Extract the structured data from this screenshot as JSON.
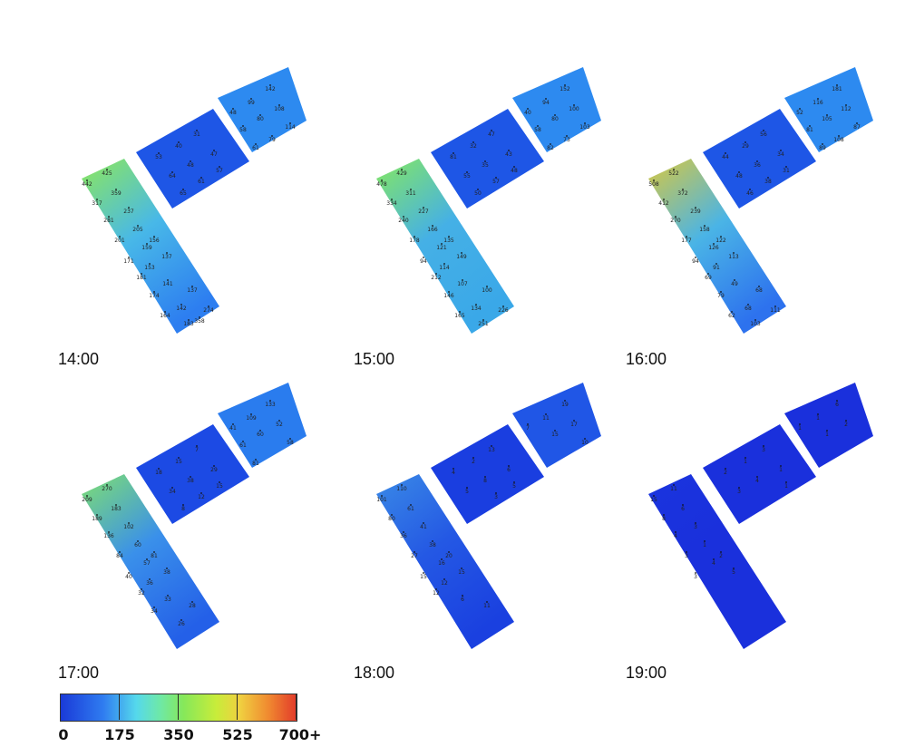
{
  "panels": [
    {
      "time": "14:00",
      "colors": {
        "north": "#1e56e6",
        "east": "#2d8af0",
        "stripTop": "#8ee85a",
        "stripMid": "#48b8e8",
        "stripBot": "#2d7ef0"
      },
      "labels": {
        "north": [
          "53",
          "40",
          "31",
          "47",
          "64",
          "48",
          "57",
          "61",
          "65"
        ],
        "east": [
          "142",
          "99",
          "108",
          "48",
          "80",
          "114",
          "58",
          "61",
          "79"
        ],
        "strip": [
          "442",
          "425",
          "317",
          "359",
          "281",
          "237",
          "201",
          "205",
          "156",
          "159",
          "137",
          "171",
          "153",
          "181",
          "141",
          "137",
          "174",
          "142",
          "164",
          "274",
          "183",
          "358"
        ]
      }
    },
    {
      "time": "15:00",
      "colors": {
        "north": "#1e56e6",
        "east": "#2d8af0",
        "stripTop": "#86e860",
        "stripMid": "#45b0e6",
        "stripBot": "#3aa8e8"
      },
      "labels": {
        "north": [
          "81",
          "32",
          "47",
          "43",
          "55",
          "35",
          "48",
          "57",
          "50"
        ],
        "east": [
          "152",
          "94",
          "100",
          "40",
          "80",
          "103",
          "58",
          "82",
          "73"
        ],
        "strip": [
          "478",
          "429",
          "334",
          "311",
          "240",
          "227",
          "178",
          "166",
          "135",
          "121",
          "149",
          "94",
          "114",
          "212",
          "107",
          "100",
          "146",
          "134",
          "165",
          "226",
          "251"
        ]
      }
    },
    {
      "time": "16:00",
      "colors": {
        "north": "#1e56e6",
        "east": "#2d8af0",
        "stripTop": "#d8c840",
        "stripMid": "#4ab4e6",
        "stripBot": "#2d72ee"
      },
      "labels": {
        "north": [
          "44",
          "29",
          "56",
          "34",
          "48",
          "36",
          "31",
          "38",
          "46"
        ],
        "east": [
          "181",
          "116",
          "112",
          "52",
          "105",
          "87",
          "81",
          "89",
          "108"
        ],
        "strip": [
          "508",
          "522",
          "412",
          "372",
          "270",
          "239",
          "177",
          "158",
          "122",
          "126",
          "113",
          "94",
          "91",
          "69",
          "49",
          "68",
          "79",
          "68",
          "62",
          "111",
          "103"
        ]
      }
    },
    {
      "time": "17:00",
      "colors": {
        "north": "#1c4ae4",
        "east": "#2a7cee",
        "stripTop": "#80e070",
        "stripMid": "#3a90ea",
        "stripBot": "#2460e8"
      },
      "labels": {
        "north": [
          "18",
          "15",
          "7",
          "29",
          "34",
          "38",
          "15",
          "12",
          "8"
        ],
        "east": [
          "133",
          "109",
          "52",
          "41",
          "60",
          "58",
          "61",
          "81"
        ],
        "strip": [
          "209",
          "270",
          "189",
          "183",
          "136",
          "102",
          "84",
          "60",
          "81",
          "57",
          "38",
          "40",
          "36",
          "32",
          "33",
          "28",
          "34",
          "26"
        ]
      }
    },
    {
      "time": "18:00",
      "colors": {
        "north": "#1a3ee0",
        "east": "#2056e6",
        "stripTop": "#3a8ae6",
        "stripMid": "#2458e4",
        "stripBot": "#1a40e0"
      },
      "labels": {
        "north": [
          "4",
          "2",
          "13",
          "6",
          "5",
          "8",
          "5",
          "3"
        ],
        "east": [
          "19",
          "11",
          "17",
          "7",
          "15",
          "10"
        ],
        "strip": [
          "101",
          "110",
          "80",
          "61",
          "36",
          "41",
          "27",
          "38",
          "20",
          "16",
          "15",
          "15",
          "12",
          "12",
          "6",
          "11"
        ]
      }
    },
    {
      "time": "19:00",
      "colors": {
        "north": "#1a30dc",
        "east": "#1a30dc",
        "stripTop": "#1a34de",
        "stripMid": "#1a30dc",
        "stripBot": "#1a30dc"
      },
      "labels": {
        "north": [
          "2",
          "1",
          "3",
          "1",
          "3",
          "4",
          "1"
        ],
        "east": [
          "6",
          "1",
          "2",
          "1",
          "1"
        ],
        "strip": [
          "15",
          "11",
          "8",
          "6",
          "4",
          "3",
          "3",
          "1",
          "2",
          "4",
          "5",
          "3"
        ]
      }
    }
  ],
  "legend": {
    "tick_labels": [
      "0",
      "175",
      "350",
      "525",
      "700+"
    ],
    "colors": [
      "#1a3ad8",
      "#2f7cf0",
      "#55d8ec",
      "#86e85a",
      "#f0d040",
      "#e23a2a"
    ]
  }
}
